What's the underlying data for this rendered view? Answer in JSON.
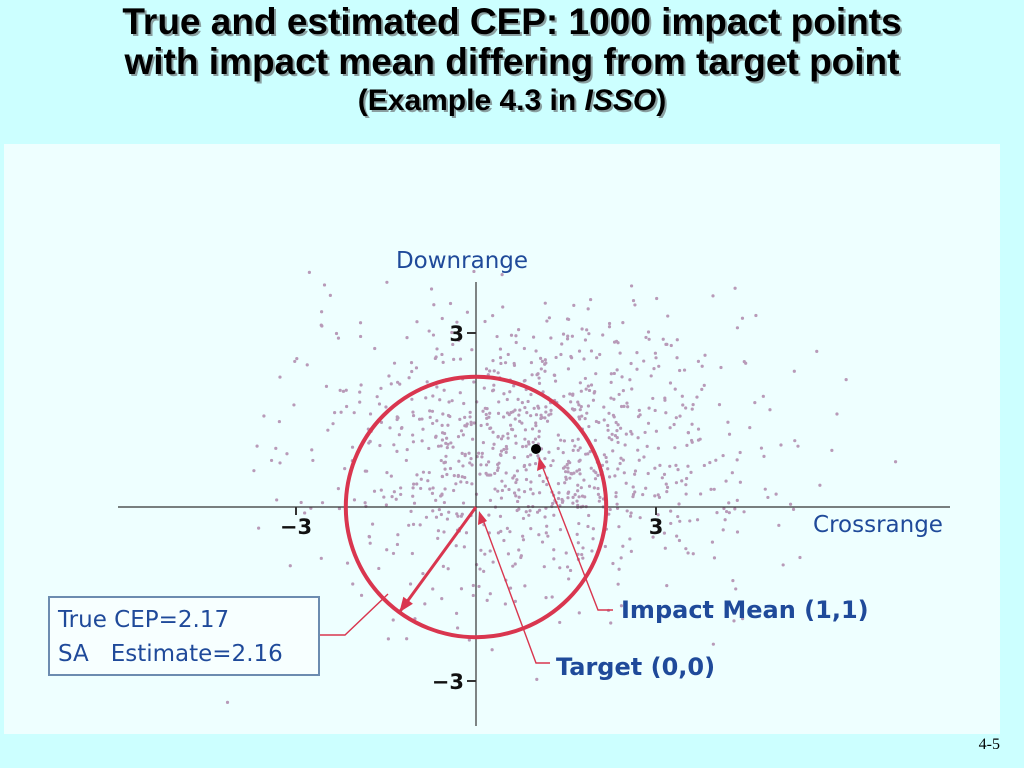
{
  "slide": {
    "title_line1": "True and estimated CEP: 1000 impact points",
    "title_line2": "with impact mean differing from target point",
    "subtitle_prefix": "(Example 4.3 in ",
    "subtitle_italic": "ISSO",
    "subtitle_suffix": ")",
    "page_number": "4-5"
  },
  "chart_data": {
    "type": "scatter",
    "xlabel": "Crossrange",
    "ylabel": "Downrange",
    "xlim": [
      -6.2,
      8.0
    ],
    "ylim": [
      -4.0,
      4.2
    ],
    "x_ticks": [
      {
        "value": -3,
        "label": "−3"
      },
      {
        "value": 3,
        "label": "3"
      }
    ],
    "y_ticks": [
      {
        "value": 3,
        "label": "3"
      },
      {
        "value": -3,
        "label": "−3"
      }
    ],
    "n_points": 1000,
    "impact_mean": {
      "x": 1,
      "y": 1,
      "label": "Impact Mean (1,1)"
    },
    "target": {
      "x": 0,
      "y": 0,
      "label": "Target (0,0)"
    },
    "cep_circle": {
      "center_x": 0,
      "center_y": 0,
      "radius": 2.17
    },
    "legend_lines": [
      "True CEP=2.17",
      "SA   Estimate=2.16"
    ],
    "colors": {
      "points": "#b89ab8",
      "circle": "#d9364f",
      "annotation": "#d9364f",
      "axis": "#333333",
      "label_text": "#1f4a9a",
      "mean_marker": "#000000"
    }
  }
}
